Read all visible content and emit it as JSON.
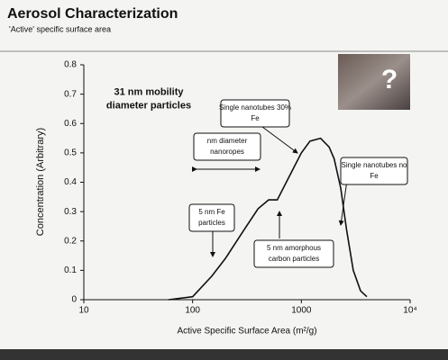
{
  "chart_data": {
    "type": "line",
    "title": "Aerosol Characterization",
    "subtitle": "'Active' specific surface area",
    "x_label": "Active Specific Surface Area (m²/g)",
    "y_label": "Concentration (Arbitrary)",
    "log_x": true,
    "color": "#111111",
    "inset_label": "?",
    "xlim": [
      10,
      10000
    ],
    "xticks": [
      10,
      100,
      1000,
      {
        "value": 10000,
        "label": "10⁴"
      }
    ],
    "ylim": [
      0,
      0.8
    ],
    "yticks": [
      0,
      0.1,
      0.2,
      0.3,
      0.4,
      0.5,
      0.6,
      0.7,
      0.8
    ],
    "x": [
      60,
      100,
      150,
      200,
      300,
      400,
      500,
      600,
      800,
      1000,
      1200,
      1500,
      1800,
      2000,
      2300,
      2600,
      3000,
      3500,
      4000
    ],
    "values": [
      0,
      0.01,
      0.08,
      0.14,
      0.24,
      0.31,
      0.34,
      0.34,
      0.43,
      0.5,
      0.54,
      0.55,
      0.52,
      0.48,
      0.38,
      0.24,
      0.1,
      0.03,
      0.01
    ],
    "annotations": [
      {
        "lines": [
          "31 nm mobility",
          "diameter particles"
        ]
      },
      {
        "lines": [
          "Single nanotubes 30%",
          "Fe"
        ]
      },
      {
        "lines": [
          "nm diameter",
          "nanoropes"
        ]
      },
      {
        "lines": [
          "Single nanotubes no",
          "Fe"
        ]
      },
      {
        "lines": [
          "5 nm Fe",
          "particles"
        ]
      },
      {
        "lines": [
          "5 nm amorphous",
          "carbon particles"
        ]
      }
    ]
  }
}
